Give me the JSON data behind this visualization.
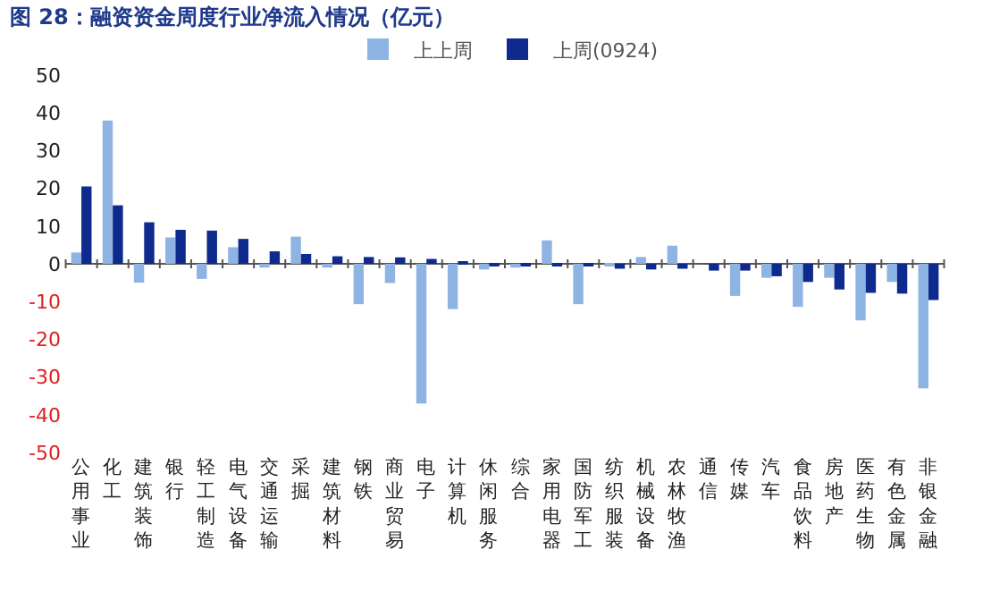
{
  "chart_data": {
    "type": "bar",
    "title": "图 28：融资资金周度行业净流入情况（亿元）",
    "categories": [
      "公用事业",
      "化工",
      "建筑装饰",
      "银行",
      "轻工制造",
      "电气设备",
      "交通运输",
      "采掘",
      "建筑材料",
      "钢铁",
      "商业贸易",
      "电子",
      "计算机",
      "休闲服务",
      "综合",
      "家用电器",
      "国防军工",
      "纺织服装",
      "机械设备",
      "农林牧渔",
      "通信",
      "传媒",
      "汽车",
      "食品饮料",
      "房地产",
      "医药生物",
      "有色金属",
      "非银金融"
    ],
    "series": [
      {
        "name": "上上周",
        "color": "#8eb4e3",
        "values": [
          3,
          38,
          -5,
          7,
          -4,
          4.4,
          -1,
          7.2,
          -1,
          -10.7,
          -5.1,
          -37,
          -12,
          -1.5,
          -1,
          6.2,
          -10.7,
          -0.7,
          1.8,
          4.8,
          0,
          -8.5,
          -3.7,
          -11.4,
          -3.7,
          -15,
          -4.8,
          -33
        ]
      },
      {
        "name": "上周(0924)",
        "color": "#0d2a8c",
        "values": [
          20.5,
          15.5,
          11,
          9,
          8.8,
          6.6,
          3.3,
          2.6,
          2,
          1.8,
          1.7,
          1.3,
          0.5,
          -0.5,
          -0.3,
          -0.7,
          -0.7,
          -1.3,
          -1.5,
          -1.3,
          -1.8,
          -1.8,
          -3.3,
          -4.8,
          -6.8,
          -7.7,
          -7.9,
          -9.6
        ]
      }
    ],
    "ylim": [
      -50,
      50
    ],
    "yticks": [
      -50,
      -40,
      -30,
      -20,
      -10,
      0,
      10,
      20,
      30,
      40,
      50
    ],
    "legend": "top"
  }
}
